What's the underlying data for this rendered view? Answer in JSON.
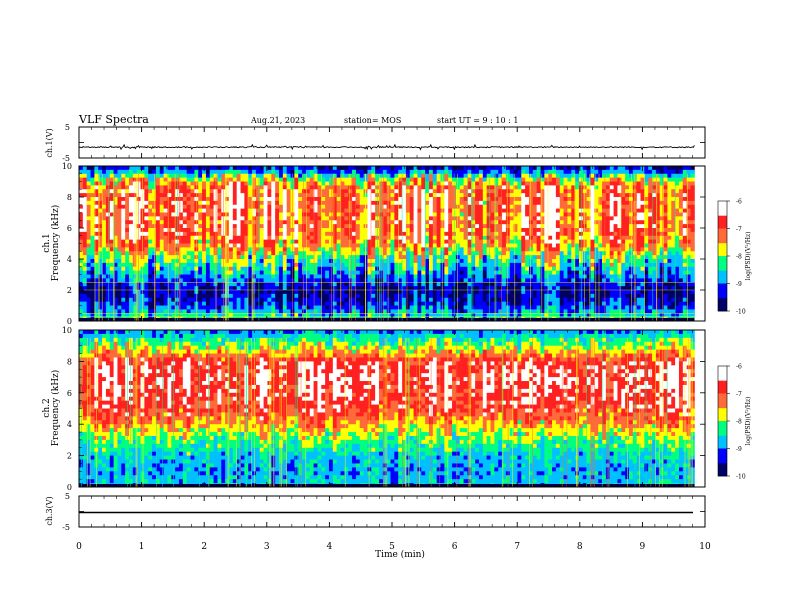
{
  "header": {
    "title": "VLF Spectra",
    "date": "Aug.21, 2023",
    "station": "station= MOS",
    "start_ut": "start UT =  9 : 10 : 1"
  },
  "panels": {
    "ch1_wave": {
      "ylabel": "ch.1(V)",
      "ticks": [
        "5",
        "-5"
      ]
    },
    "ch1_spec": {
      "ylabel_line1": "ch.1",
      "ylabel_line2": "Frequency (kHz)",
      "ticks": [
        "10",
        "8",
        "6",
        "4",
        "2",
        "0"
      ]
    },
    "ch2_spec": {
      "ylabel_line1": "ch.2",
      "ylabel_line2": "Frequency (kHz)",
      "ticks": [
        "10",
        "8",
        "6",
        "4",
        "2",
        "0"
      ]
    },
    "ch3_wave": {
      "ylabel": "ch.3(V)",
      "ticks": [
        "5",
        "-5"
      ]
    }
  },
  "colorbar": {
    "label": "log(PSD)(V²/Hz)",
    "ticks": [
      "-6",
      "-7",
      "-8",
      "-9",
      "-10"
    ],
    "colors": [
      "#000066",
      "#0000ff",
      "#00c0ff",
      "#00ff80",
      "#ffff00",
      "#ff6a3a",
      "#ff2020",
      "#ffffff"
    ]
  },
  "x_axis": {
    "label": "Time (min)",
    "ticks": [
      "0",
      "1",
      "2",
      "3",
      "4",
      "5",
      "6",
      "7",
      "8",
      "9",
      "10"
    ]
  },
  "chart_data": [
    {
      "type": "line",
      "name_panel": "ch.1(V)",
      "x_range": [
        0,
        10
      ],
      "ylim": [
        -5,
        5
      ],
      "baseline": -1.5
    },
    {
      "type": "heatmap",
      "name_panel": "ch.1 Frequency (kHz)",
      "x_range": [
        0,
        10
      ],
      "ylim": [
        0,
        10
      ],
      "data_end_min": 9.83,
      "profile_kHz": [
        0,
        1,
        2,
        3,
        4,
        5,
        6,
        7,
        8,
        8.5,
        9,
        9.5,
        10
      ],
      "profile_logpsd": [
        -8.2,
        -9.2,
        -9.6,
        -8.8,
        -8.2,
        -7.2,
        -6.9,
        -6.9,
        -6.9,
        -7.0,
        -7.5,
        -8.6,
        -9.6
      ]
    },
    {
      "type": "heatmap",
      "name_panel": "ch.2 Frequency (kHz)",
      "x_range": [
        0,
        10
      ],
      "ylim": [
        0,
        10
      ],
      "data_end_min": 9.83,
      "profile_kHz": [
        0,
        1,
        2,
        3,
        4,
        5,
        6,
        7,
        8,
        8.5,
        9,
        9.5,
        10
      ],
      "profile_logpsd": [
        -8.6,
        -8.8,
        -8.6,
        -8.1,
        -7.4,
        -6.8,
        -6.6,
        -6.5,
        -6.7,
        -7.4,
        -7.9,
        -8.4,
        -9.0
      ]
    },
    {
      "type": "line",
      "name_panel": "ch.3(V)",
      "x_range": [
        0,
        10
      ],
      "ylim": [
        -5,
        5
      ],
      "baseline": -1.5
    }
  ]
}
